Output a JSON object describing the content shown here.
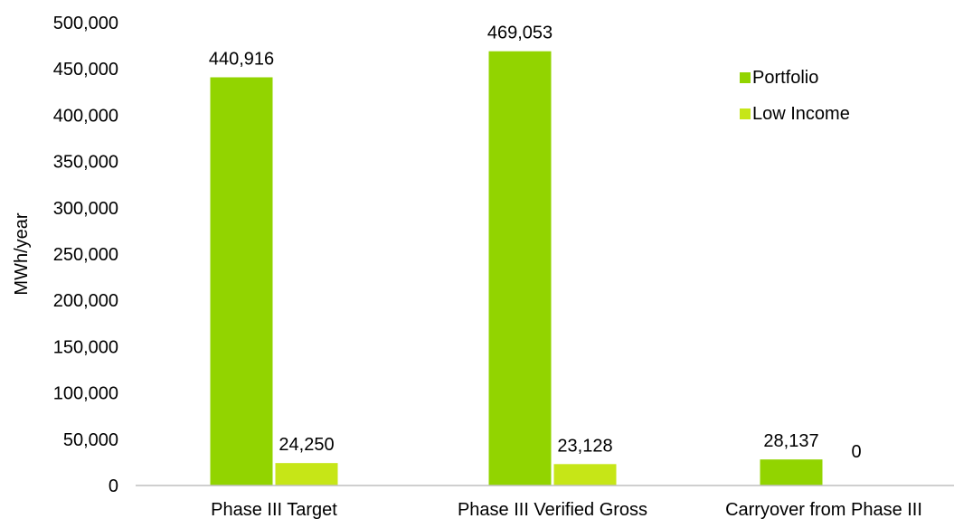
{
  "chart_data": {
    "type": "bar",
    "title": "",
    "xlabel": "",
    "ylabel": "MWh/year",
    "ylim": [
      0,
      500000
    ],
    "yticks": [
      0,
      50000,
      100000,
      150000,
      200000,
      250000,
      300000,
      350000,
      400000,
      450000,
      500000
    ],
    "ytick_labels": [
      "0",
      "50,000",
      "100,000",
      "150,000",
      "200,000",
      "250,000",
      "300,000",
      "350,000",
      "400,000",
      "450,000",
      "500,000"
    ],
    "categories": [
      "Phase III Target",
      "Phase III Verified Gross",
      "Carryover from Phase III"
    ],
    "series": [
      {
        "name": "Portfolio",
        "color": "#92d400",
        "values": [
          440916,
          469053,
          28137
        ],
        "value_labels": [
          "440,916",
          "469,053",
          "28,137"
        ]
      },
      {
        "name": "Low Income",
        "color": "#c6e617",
        "values": [
          24250,
          23128,
          0
        ],
        "value_labels": [
          "24,250",
          "23,128",
          "0"
        ]
      }
    ],
    "grid": false,
    "legend_position": "top-right",
    "axis_line_color": "#bfbfbf"
  }
}
